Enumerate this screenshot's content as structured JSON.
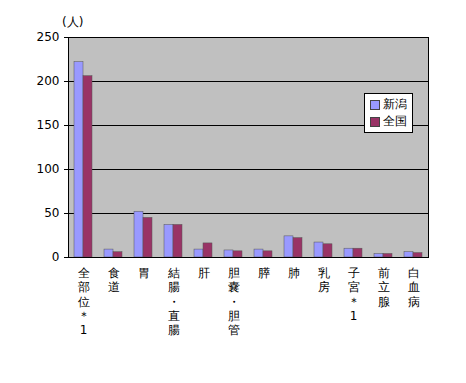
{
  "chart_data": {
    "type": "bar",
    "y_label": "(人)",
    "categories": [
      "全部位＊1",
      "食道",
      "胃",
      "結腸・直腸",
      "肝",
      "胆嚢・胆管",
      "膵",
      "肺",
      "乳房",
      "子宮＊1",
      "前立腺",
      "白血病"
    ],
    "series": [
      {
        "name": "新潟",
        "color": "#9999ff",
        "values": [
          222,
          9,
          52,
          37,
          9,
          8,
          9,
          24,
          17,
          10,
          4,
          6
        ]
      },
      {
        "name": "全国",
        "color": "#993366",
        "values": [
          206,
          6,
          45,
          37,
          16,
          7,
          7,
          22,
          15,
          10,
          4,
          5
        ]
      }
    ],
    "ylim": [
      0,
      250
    ],
    "yticks": [
      0,
      50,
      100,
      150,
      200,
      250
    ],
    "grid": true,
    "legend": "right"
  }
}
